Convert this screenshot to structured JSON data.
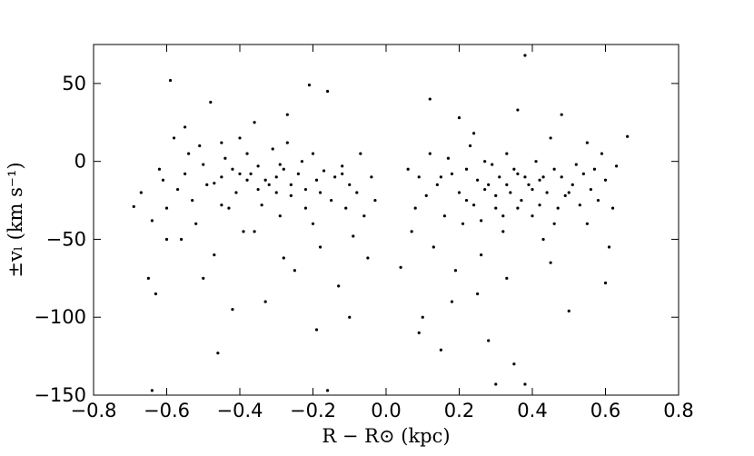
{
  "chart_data": {
    "type": "scatter",
    "x_label": "R − R⊙ (kpc)",
    "y_label": "±vₗ (km s⁻¹)",
    "color": "#000000",
    "xlim": [
      -0.8,
      0.8
    ],
    "ylim": [
      -150,
      75
    ],
    "xticks": [
      {
        "value": -0.8,
        "label": "−0.8"
      },
      {
        "value": -0.6,
        "label": "−0.6"
      },
      {
        "value": -0.4,
        "label": "−0.4"
      },
      {
        "value": -0.2,
        "label": "−0.2"
      },
      {
        "value": 0,
        "label": "0.0"
      },
      {
        "value": 0.2,
        "label": "0.2"
      },
      {
        "value": 0.4,
        "label": "0.4"
      },
      {
        "value": 0.6,
        "label": "0.6"
      },
      {
        "value": 0.8,
        "label": "0.8"
      }
    ],
    "yticks": [
      {
        "value": -150,
        "label": "−150"
      },
      {
        "value": -100,
        "label": "−100"
      },
      {
        "value": -50,
        "label": "−50"
      },
      0,
      50
    ],
    "x": [
      -0.69,
      -0.67,
      -0.65,
      -0.64,
      -0.63,
      -0.62,
      -0.61,
      -0.6,
      -0.59,
      -0.58,
      -0.57,
      -0.56,
      -0.55,
      -0.54,
      -0.53,
      -0.52,
      -0.51,
      -0.5,
      -0.49,
      -0.48,
      -0.47,
      -0.46,
      -0.45,
      -0.44,
      -0.43,
      -0.42,
      -0.41,
      -0.4,
      -0.39,
      -0.38,
      -0.37,
      -0.36,
      -0.35,
      -0.34,
      -0.33,
      -0.32,
      -0.31,
      -0.3,
      -0.29,
      -0.28,
      -0.27,
      -0.26,
      -0.25,
      -0.24,
      -0.23,
      -0.22,
      -0.21,
      -0.2,
      -0.19,
      -0.18,
      -0.17,
      -0.16,
      -0.15,
      -0.14,
      -0.13,
      -0.12,
      -0.11,
      -0.1,
      -0.09,
      -0.08,
      -0.07,
      -0.06,
      -0.05,
      -0.04,
      -0.03,
      -0.42,
      -0.5,
      -0.28,
      -0.36,
      -0.55,
      -0.38,
      -0.3,
      -0.33,
      -0.26,
      -0.45,
      -0.4,
      -0.22,
      -0.18,
      -0.12,
      -0.35,
      -0.47,
      -0.29,
      -0.16,
      -0.19,
      -0.64,
      -0.27,
      -0.45,
      -0.1,
      -0.2,
      -0.6,
      0.04,
      0.06,
      0.07,
      0.08,
      0.09,
      0.1,
      0.11,
      0.12,
      0.13,
      0.14,
      0.15,
      0.16,
      0.17,
      0.18,
      0.19,
      0.2,
      0.21,
      0.22,
      0.23,
      0.24,
      0.25,
      0.26,
      0.27,
      0.28,
      0.29,
      0.3,
      0.31,
      0.32,
      0.33,
      0.34,
      0.35,
      0.36,
      0.37,
      0.38,
      0.39,
      0.4,
      0.41,
      0.42,
      0.43,
      0.44,
      0.45,
      0.46,
      0.47,
      0.48,
      0.49,
      0.5,
      0.51,
      0.52,
      0.53,
      0.54,
      0.55,
      0.56,
      0.57,
      0.58,
      0.59,
      0.6,
      0.61,
      0.62,
      0.63,
      0.66,
      0.12,
      0.2,
      0.3,
      0.38,
      0.25,
      0.33,
      0.45,
      0.18,
      0.28,
      0.35,
      0.4,
      0.22,
      0.3,
      0.36,
      0.43,
      0.5,
      0.27,
      0.33,
      0.38,
      0.15,
      0.55,
      0.48,
      0.36,
      0.24,
      0.6,
      0.09,
      0.32,
      0.42,
      0.26,
      0.46
    ],
    "values": [
      -29,
      -20,
      -75,
      -38,
      -85,
      -5,
      -12,
      -30,
      52,
      15,
      -18,
      -50,
      -8,
      5,
      -25,
      -40,
      10,
      -2,
      -15,
      38,
      -60,
      -123,
      -10,
      2,
      -30,
      -5,
      -20,
      15,
      -45,
      -12,
      -8,
      25,
      -3,
      -28,
      -90,
      -15,
      8,
      -10,
      -35,
      -5,
      12,
      -22,
      -70,
      -8,
      0,
      -18,
      49,
      -40,
      -12,
      -55,
      -6,
      45,
      -25,
      -10,
      -80,
      -3,
      -30,
      -15,
      -48,
      -20,
      5,
      -35,
      -62,
      -10,
      -25,
      -95,
      -75,
      -62,
      -45,
      22,
      5,
      -20,
      -12,
      -15,
      -28,
      -8,
      -30,
      -20,
      -8,
      -18,
      -14,
      -2,
      -147,
      -108,
      -147,
      30,
      12,
      -100,
      5,
      -50,
      -68,
      -5,
      -45,
      -30,
      -10,
      -100,
      -22,
      5,
      -55,
      -15,
      -121,
      -35,
      2,
      -8,
      -70,
      -20,
      -40,
      -5,
      10,
      -28,
      -12,
      -60,
      -18,
      -115,
      -2,
      -30,
      -10,
      -45,
      5,
      -20,
      -130,
      -8,
      -25,
      68,
      -15,
      -35,
      0,
      -12,
      -50,
      -20,
      15,
      -5,
      -30,
      -10,
      -22,
      -96,
      -15,
      -2,
      -28,
      -8,
      -40,
      -18,
      -5,
      -25,
      5,
      -12,
      -55,
      -30,
      -3,
      16,
      40,
      28,
      -143,
      -143,
      -85,
      -75,
      -65,
      -90,
      -15,
      -5,
      -18,
      -25,
      -22,
      -30,
      -10,
      -20,
      0,
      -15,
      -10,
      -10,
      12,
      30,
      33,
      18,
      -78,
      -110,
      -35,
      -28,
      -38,
      -40
    ]
  }
}
